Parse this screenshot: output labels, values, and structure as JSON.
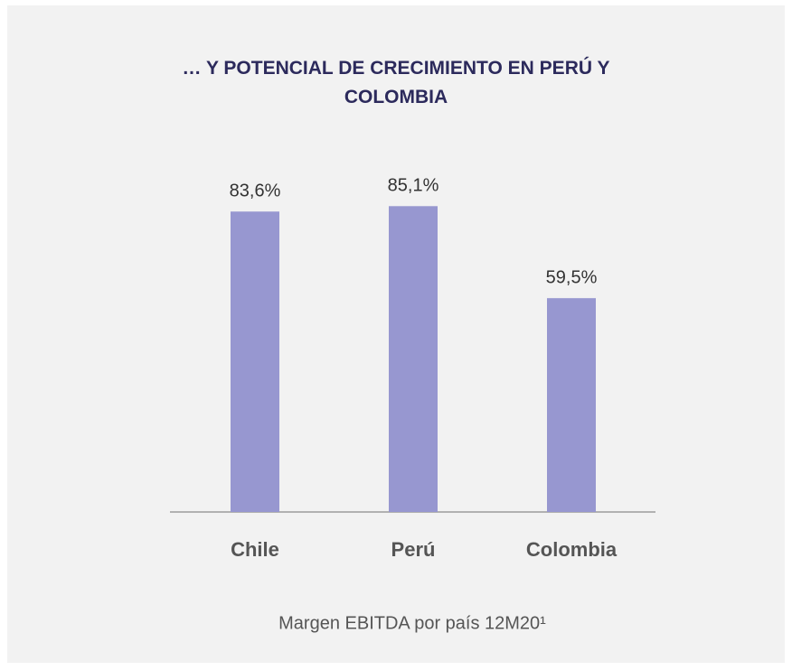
{
  "chart_data": {
    "type": "bar",
    "title": "… Y POTENCIAL DE CRECIMIENTO EN PERÚ Y COLOMBIA",
    "caption": "Margen EBITDA por país 12M20¹",
    "categories": [
      "Chile",
      "Perú",
      "Colombia"
    ],
    "values": [
      83.6,
      85.1,
      59.5
    ],
    "value_labels": [
      "83,6%",
      "85,1%",
      "59,5%"
    ],
    "color": "#9797d0",
    "ylim": [
      0,
      100
    ]
  }
}
